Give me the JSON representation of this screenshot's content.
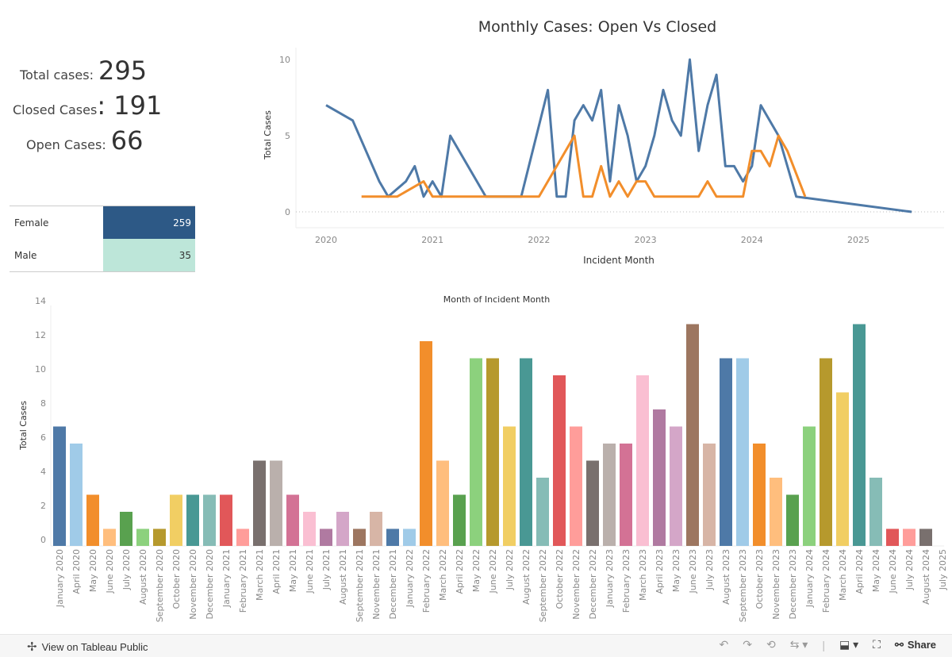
{
  "kpis": {
    "total": {
      "label": "Total cases:",
      "value": "295"
    },
    "closed": {
      "label": "Closed Cases",
      "value": ": 191"
    },
    "open": {
      "label": "Open Cases:",
      "value": "66"
    }
  },
  "gender": {
    "rows": [
      {
        "label": "Female",
        "value": "259",
        "color": "#2d5986",
        "text_color": "#ffffff"
      },
      {
        "label": "Male",
        "value": "35",
        "color": "#bde6d9",
        "text_color": "#333333"
      }
    ]
  },
  "footer": {
    "view_label": "View on Tableau Public",
    "share_label": "Share",
    "icons": [
      "tableau-logo-icon",
      "undo-icon",
      "redo-icon",
      "revert-icon",
      "refresh-icon",
      "pause-icon",
      "download-icon",
      "fullscreen-icon",
      "share-icon"
    ]
  },
  "chart_data": [
    {
      "type": "line",
      "title": "Monthly Cases: Open Vs Closed",
      "xlabel": "Incident Month",
      "ylabel": "Total Cases",
      "ylim": [
        -1,
        11
      ],
      "yticks": [
        "0",
        "5",
        "10"
      ],
      "xticks": [
        "2020",
        "2021",
        "2022",
        "2023",
        "2024",
        "2025"
      ],
      "grid": false,
      "zero_line": true,
      "series": [
        {
          "name": "Closed",
          "color": "#4e79a7",
          "points": [
            [
              "2020-01",
              7
            ],
            [
              "2020-04",
              6
            ],
            [
              "2020-07",
              2
            ],
            [
              "2020-08",
              1
            ],
            [
              "2020-10",
              2
            ],
            [
              "2020-11",
              3
            ],
            [
              "2020-12",
              1
            ],
            [
              "2021-01",
              2
            ],
            [
              "2021-02",
              1
            ],
            [
              "2021-03",
              5
            ],
            [
              "2021-07",
              1
            ],
            [
              "2021-08",
              1
            ],
            [
              "2021-09",
              1
            ],
            [
              "2021-11",
              1
            ],
            [
              "2022-02",
              8
            ],
            [
              "2022-03",
              1
            ],
            [
              "2022-04",
              1
            ],
            [
              "2022-05",
              6
            ],
            [
              "2022-06",
              7
            ],
            [
              "2022-07",
              6
            ],
            [
              "2022-08",
              8
            ],
            [
              "2022-09",
              2
            ],
            [
              "2022-10",
              7
            ],
            [
              "2022-11",
              5
            ],
            [
              "2022-12",
              2
            ],
            [
              "2023-01",
              3
            ],
            [
              "2023-02",
              5
            ],
            [
              "2023-03",
              8
            ],
            [
              "2023-04",
              6
            ],
            [
              "2023-05",
              5
            ],
            [
              "2023-06",
              10
            ],
            [
              "2023-07",
              4
            ],
            [
              "2023-08",
              7
            ],
            [
              "2023-09",
              9
            ],
            [
              "2023-10",
              3
            ],
            [
              "2023-11",
              3
            ],
            [
              "2023-12",
              2
            ],
            [
              "2024-01",
              3
            ],
            [
              "2024-02",
              7
            ],
            [
              "2024-04",
              5
            ],
            [
              "2024-06",
              1
            ],
            [
              "2025-07",
              0
            ]
          ]
        },
        {
          "name": "Open",
          "color": "#f28e2b",
          "points": [
            [
              "2020-05",
              1
            ],
            [
              "2020-06",
              1
            ],
            [
              "2020-08",
              1
            ],
            [
              "2020-09",
              1
            ],
            [
              "2020-12",
              2
            ],
            [
              "2021-01",
              1
            ],
            [
              "2021-02",
              1
            ],
            [
              "2021-07",
              1
            ],
            [
              "2022-01",
              1
            ],
            [
              "2022-05",
              5
            ],
            [
              "2022-06",
              1
            ],
            [
              "2022-07",
              1
            ],
            [
              "2022-08",
              3
            ],
            [
              "2022-09",
              1
            ],
            [
              "2022-10",
              2
            ],
            [
              "2022-11",
              1
            ],
            [
              "2022-12",
              2
            ],
            [
              "2023-01",
              2
            ],
            [
              "2023-02",
              1
            ],
            [
              "2023-07",
              1
            ],
            [
              "2023-08",
              2
            ],
            [
              "2023-09",
              1
            ],
            [
              "2023-12",
              1
            ],
            [
              "2024-01",
              4
            ],
            [
              "2024-02",
              4
            ],
            [
              "2024-03",
              3
            ],
            [
              "2024-04",
              5
            ],
            [
              "2024-05",
              4
            ],
            [
              "2024-07",
              1
            ]
          ]
        }
      ]
    },
    {
      "type": "bar",
      "title": "Month of Incident Month",
      "xlabel": "",
      "ylabel": "Total Cases",
      "ylim": [
        0,
        14
      ],
      "yticks": [
        "0",
        "2",
        "4",
        "6",
        "8",
        "10",
        "12",
        "14"
      ],
      "categories": [
        "January 2020",
        "April 2020",
        "May 2020",
        "June 2020",
        "July 2020",
        "August 2020",
        "September 2020",
        "October 2020",
        "November 2020",
        "December 2020",
        "January 2021",
        "February 2021",
        "March 2021",
        "April 2021",
        "May 2021",
        "June 2021",
        "July 2021",
        "August 2021",
        "September 2021",
        "November 2021",
        "December 2021",
        "January 2022",
        "February 2022",
        "March 2022",
        "April 2022",
        "May 2022",
        "June 2022",
        "July 2022",
        "August 2022",
        "September 2022",
        "October 2022",
        "November 2022",
        "December 2022",
        "January 2023",
        "February 2023",
        "March 2023",
        "April 2023",
        "May 2023",
        "June 2023",
        "July 2023",
        "August 2023",
        "September 2023",
        "October 2023",
        "November 2023",
        "December 2023",
        "January 2024",
        "February 2024",
        "March 2024",
        "April 2024",
        "May 2024",
        "June 2024",
        "July 2024",
        "August 2024",
        "July 2025"
      ],
      "values": [
        7,
        6,
        3,
        1,
        2,
        1,
        1,
        3,
        3,
        3,
        3,
        1,
        5,
        5,
        3,
        2,
        1,
        2,
        1,
        2,
        1,
        1,
        12,
        5,
        3,
        11,
        11,
        7,
        11,
        4,
        10,
        7,
        5,
        6,
        6,
        10,
        8,
        7,
        13,
        6,
        11,
        11,
        6,
        4,
        3,
        7,
        11,
        9,
        13,
        4,
        1,
        1,
        1,
        0
      ],
      "palette": [
        "#4e79a7",
        "#a0cbe8",
        "#f28e2b",
        "#ffbe7d",
        "#59a14f",
        "#8cd17d",
        "#b6992d",
        "#f1ce63",
        "#499894",
        "#86bcb6",
        "#e15759",
        "#ff9d9a",
        "#79706e",
        "#bab0ac",
        "#d37295",
        "#fabfd2",
        "#b07aa1",
        "#d4a6c8",
        "#9d7660",
        "#d7b5a6"
      ]
    }
  ]
}
